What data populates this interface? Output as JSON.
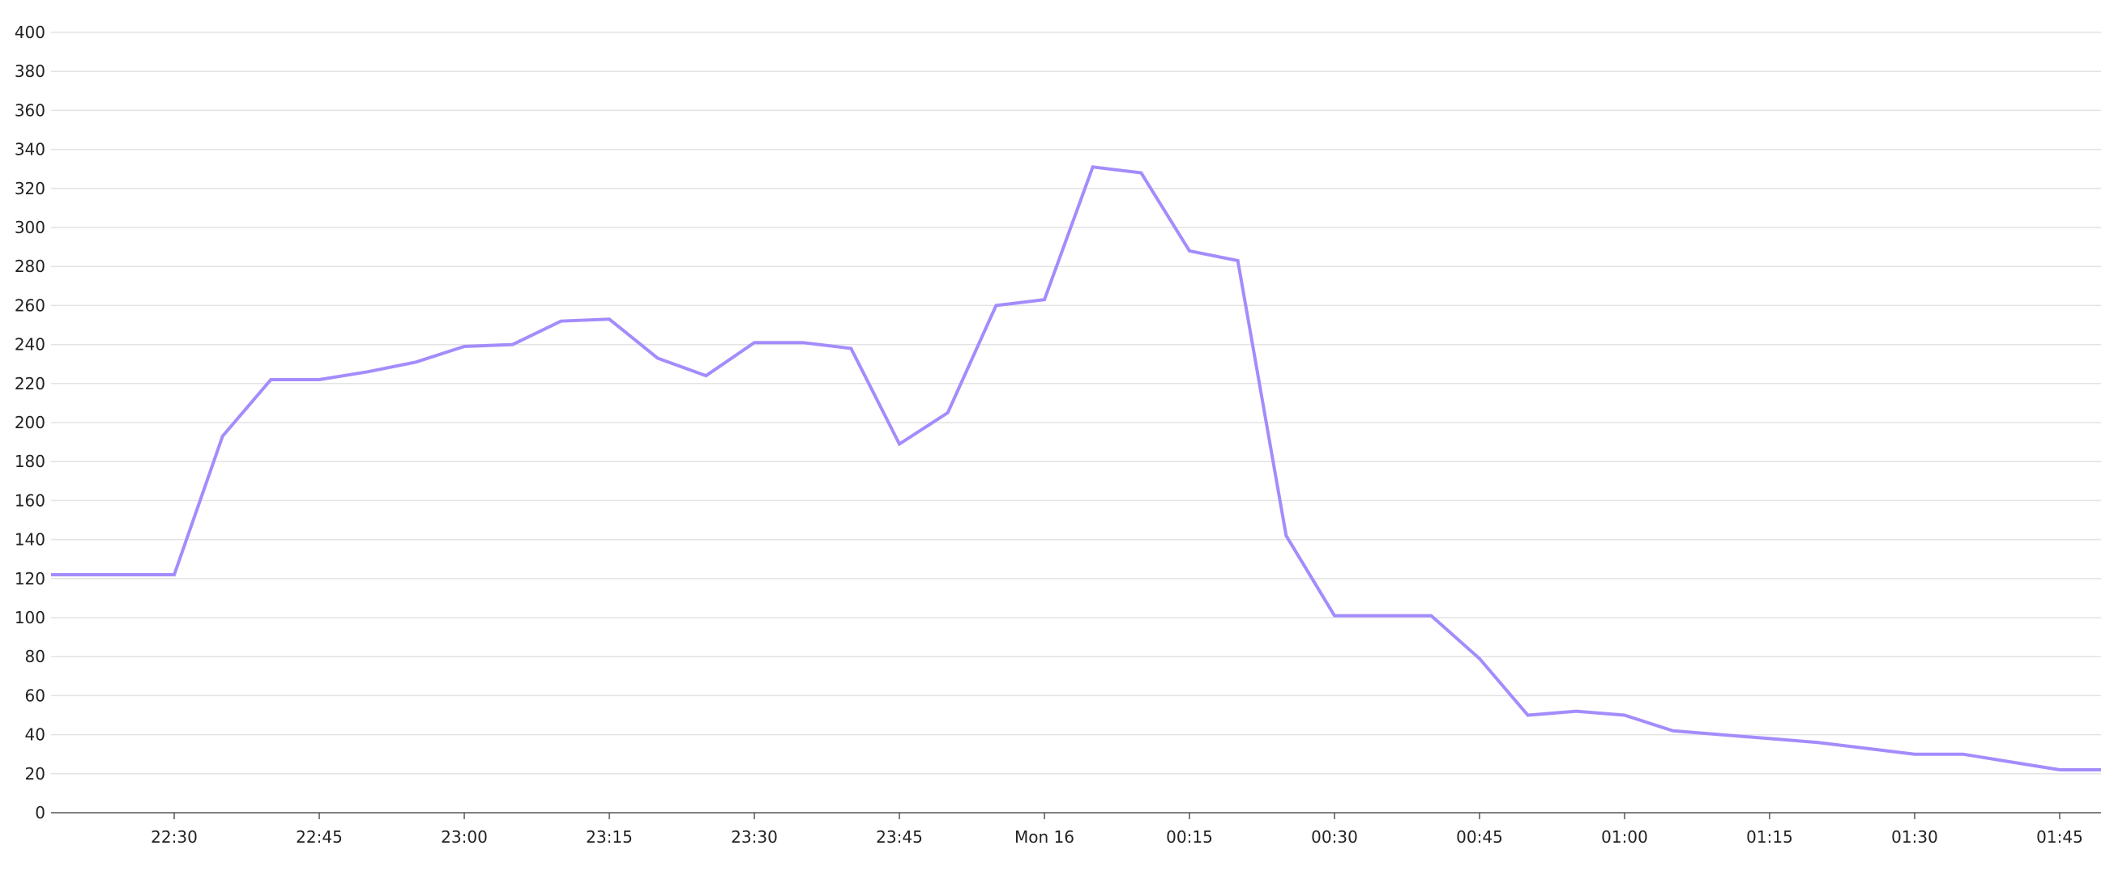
{
  "chart_data": {
    "type": "line",
    "title": "",
    "xlabel": "",
    "ylabel": "",
    "ylim": [
      0,
      400
    ],
    "y_ticks": [
      0,
      20,
      40,
      60,
      80,
      100,
      120,
      140,
      160,
      180,
      200,
      220,
      240,
      260,
      280,
      300,
      320,
      340,
      360,
      380,
      400
    ],
    "x_ticks": [
      "22:30",
      "22:45",
      "23:00",
      "23:15",
      "23:30",
      "23:45",
      "Mon 16",
      "00:15",
      "00:30",
      "00:45",
      "01:00",
      "01:15",
      "01:30",
      "01:45"
    ],
    "grid": "horizontal",
    "line_color": "#a48cfc",
    "x": [
      "22:15",
      "22:20",
      "22:25",
      "22:30",
      "22:35",
      "22:40",
      "22:45",
      "22:50",
      "22:55",
      "23:00",
      "23:05",
      "23:10",
      "23:15",
      "23:20",
      "23:25",
      "23:30",
      "23:35",
      "23:40",
      "23:45",
      "23:50",
      "23:55",
      "00:00",
      "00:05",
      "00:10",
      "00:15",
      "00:20",
      "00:25",
      "00:30",
      "00:35",
      "00:40",
      "00:45",
      "00:50",
      "00:55",
      "01:00",
      "01:05",
      "01:10",
      "01:15",
      "01:20",
      "01:25",
      "01:30",
      "01:35",
      "01:40",
      "01:45",
      "01:50"
    ],
    "values": [
      122,
      122,
      122,
      122,
      193,
      222,
      222,
      226,
      231,
      239,
      240,
      252,
      253,
      233,
      224,
      241,
      241,
      238,
      189,
      205,
      260,
      263,
      331,
      328,
      288,
      283,
      142,
      101,
      101,
      101,
      79,
      50,
      52,
      50,
      42,
      40,
      38,
      36,
      33,
      30,
      30,
      26,
      22,
      22
    ]
  }
}
